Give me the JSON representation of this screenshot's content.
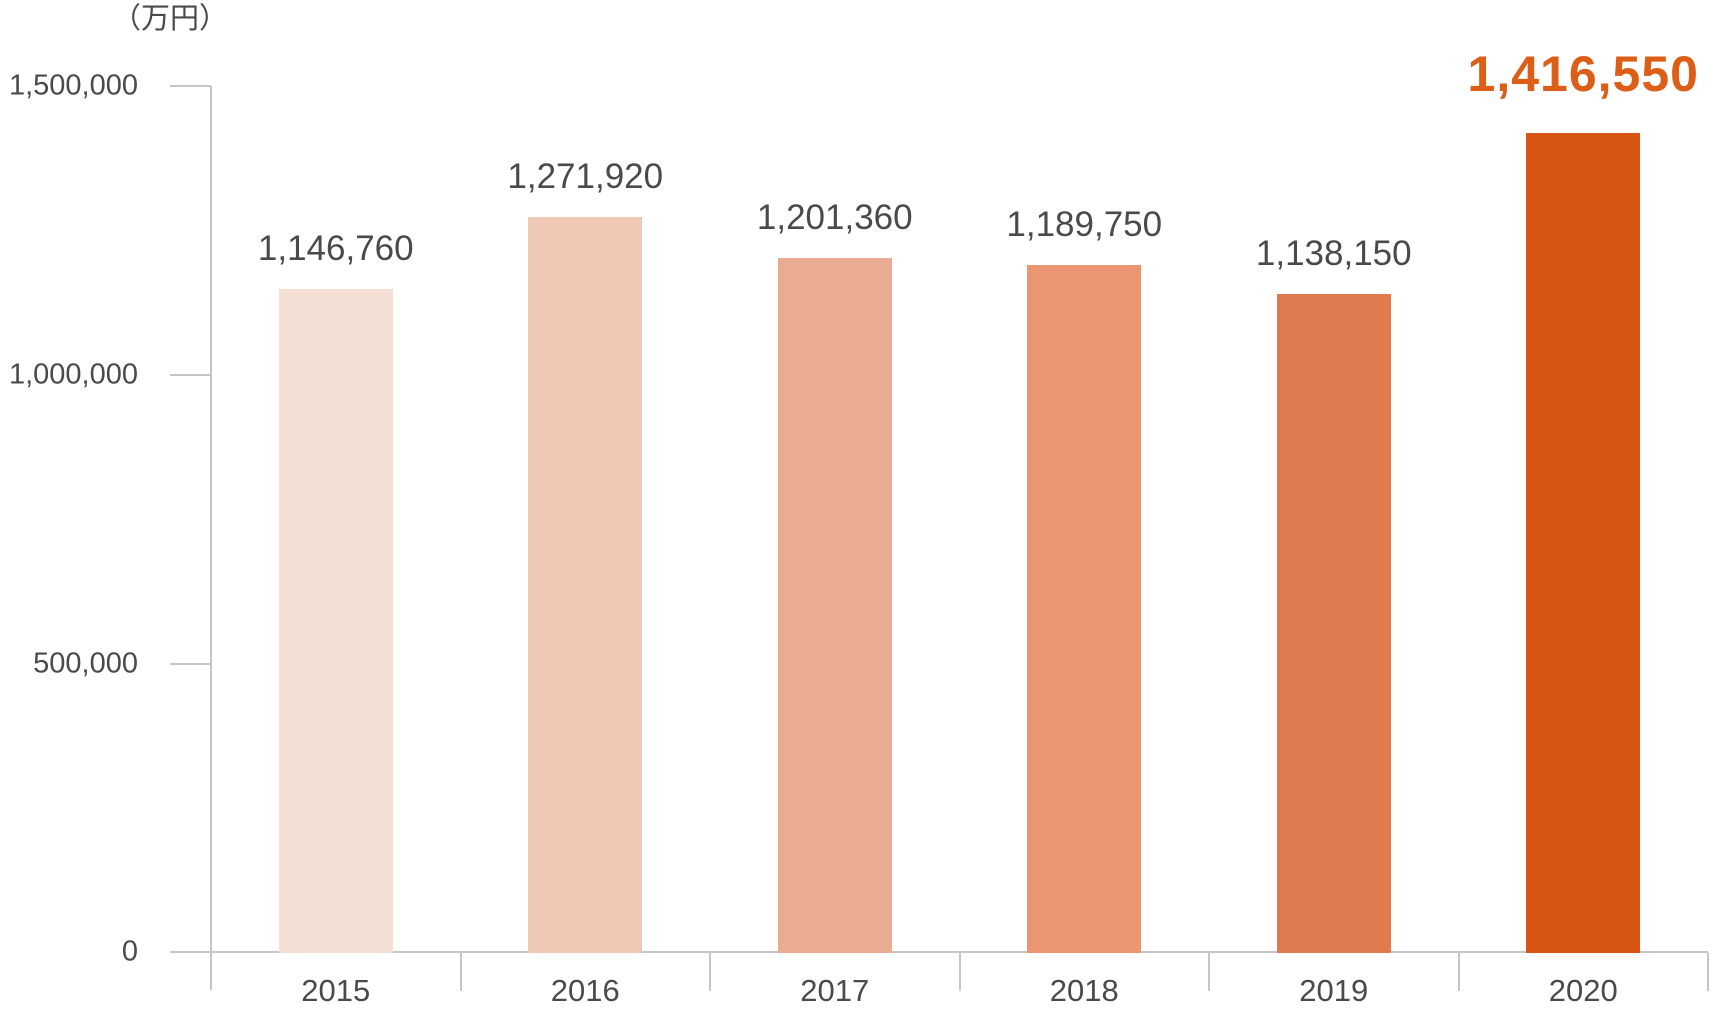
{
  "chart_data": {
    "type": "bar",
    "title": "",
    "unit_label": "（万円）",
    "categories": [
      "2015",
      "2016",
      "2017",
      "2018",
      "2019",
      "2020"
    ],
    "values": [
      1146760,
      1271920,
      1201360,
      1189750,
      1138150,
      1416550
    ],
    "value_labels": [
      "1,146,760",
      "1,271,920",
      "1,201,360",
      "1,189,750",
      "1,138,150",
      "1,416,550"
    ],
    "highlight_index": 5,
    "xlabel": "",
    "ylabel": "（万円）",
    "ylim": [
      0,
      1500000
    ],
    "yticks": [
      0,
      500000,
      1000000,
      1500000
    ],
    "ytick_labels": [
      "0",
      "500,000",
      "1,000,000",
      "1,500,000"
    ],
    "grid": false,
    "legend": "none",
    "bar_colors": [
      "#F4DFD4",
      "#F0C9B6",
      "#E9AB91",
      "#EA9672",
      "#DF7B4E",
      "#D95513"
    ]
  },
  "colors": {
    "highlight_value": "#DC5E17",
    "label_text": "#4A4A4A",
    "axis_line": "#C6C6C6",
    "background": "#FFFFFF"
  }
}
